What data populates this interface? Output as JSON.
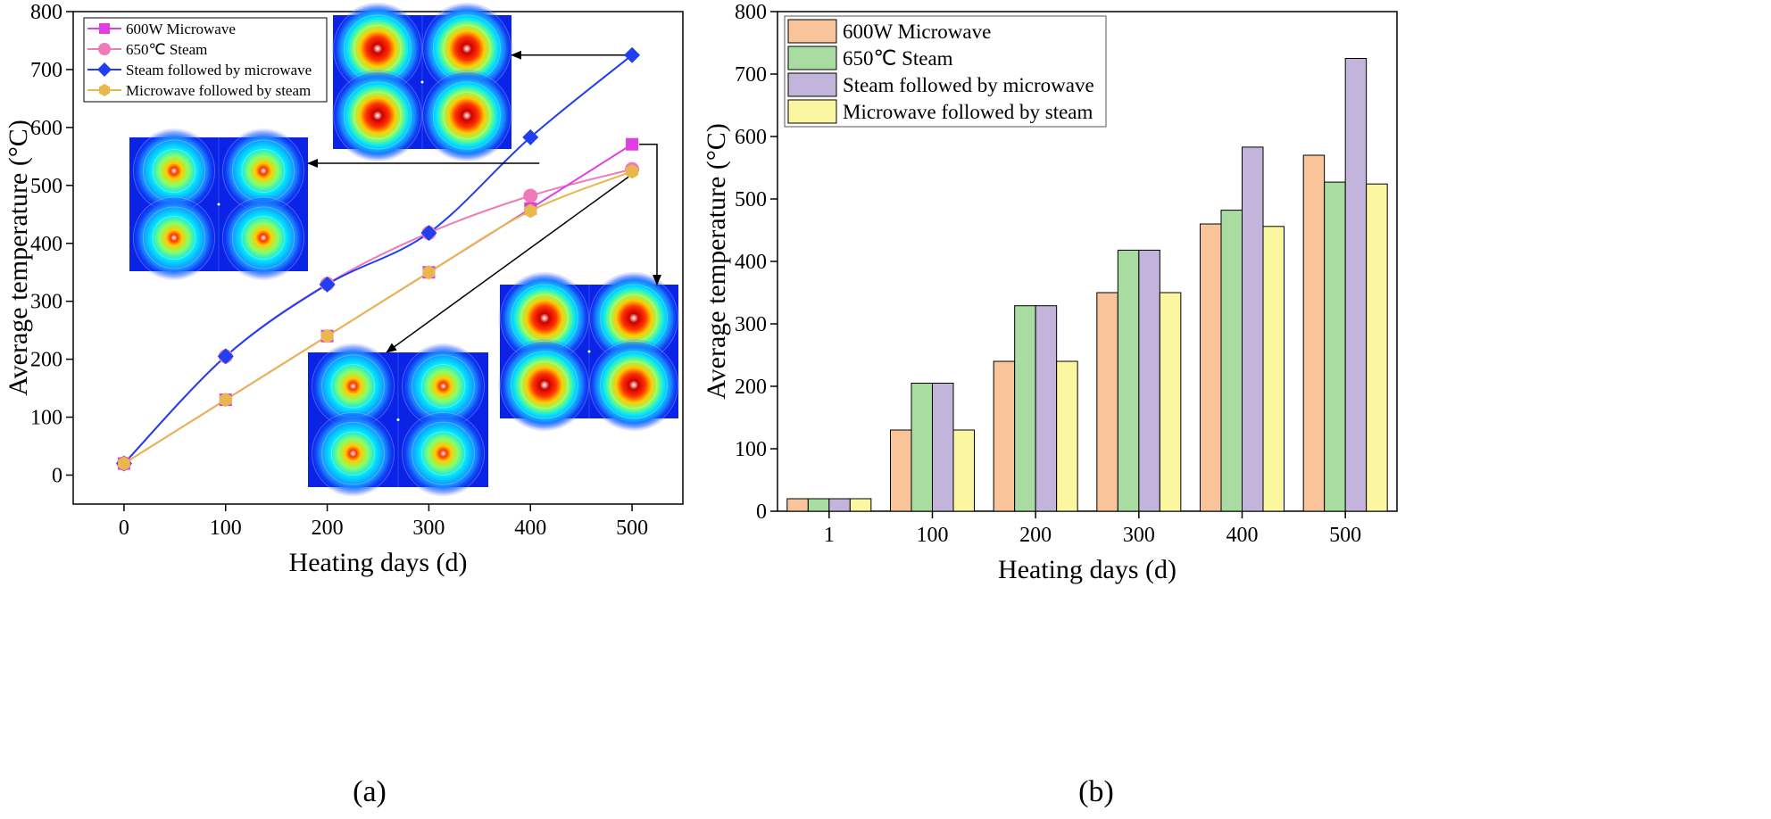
{
  "panels": {
    "a": {
      "caption": "(a)"
    },
    "b": {
      "caption": "(b)"
    }
  },
  "colors": {
    "line_600w_microwave": "#e03ee0",
    "line_650c_steam": "#f07ab8",
    "line_steam_then_microwave": "#1f3ff0",
    "line_microwave_then_steam": "#e8b84c",
    "bar_600w_microwave": "#f9c49a",
    "bar_650c_steam": "#a8dca0",
    "bar_steam_then_microwave": "#c2b4da",
    "bar_microwave_then_steam": "#fbf7a0"
  },
  "chart_data": [
    {
      "type": "line",
      "xlabel": "Heating days (d)",
      "ylabel": "Average temperature (°C)",
      "x": [
        0,
        100,
        200,
        300,
        400,
        500
      ],
      "xlim": [
        -50,
        550
      ],
      "ylim": [
        -50,
        800
      ],
      "xticks": [
        "0",
        "100",
        "200",
        "300",
        "400",
        "500"
      ],
      "yticks": [
        "0",
        "100",
        "200",
        "300",
        "400",
        "500",
        "600",
        "700",
        "800"
      ],
      "legend_position": "top-left",
      "series": [
        {
          "name": "600W Microwave",
          "marker": "square",
          "values": [
            20,
            130,
            240,
            350,
            460,
            571
          ]
        },
        {
          "name": "650℃ Steam",
          "marker": "circle",
          "values": [
            20,
            205,
            330,
            418,
            482,
            528
          ]
        },
        {
          "name": "Steam followed by microwave",
          "marker": "diamond",
          "values": [
            20,
            205,
            329,
            418,
            583,
            725
          ]
        },
        {
          "name": "Microwave followed by steam",
          "marker": "hexagon",
          "values": [
            20,
            130,
            240,
            350,
            456,
            524
          ]
        }
      ],
      "insets": [
        {
          "id": "inset-top",
          "points_to_series": "Steam followed by microwave",
          "points_to_x": 500
        },
        {
          "id": "inset-left",
          "points_to_series": "Steam followed by microwave",
          "points_to_x": 400
        },
        {
          "id": "inset-right",
          "points_to_series": "600W Microwave",
          "points_to_x": 500
        },
        {
          "id": "inset-bottom",
          "points_to_series": "Microwave followed by steam",
          "points_to_x": 500
        }
      ]
    },
    {
      "type": "bar",
      "xlabel": "Heating days (d)",
      "ylabel": "Average temperature (°C)",
      "categories": [
        "1",
        "100",
        "200",
        "300",
        "400",
        "500"
      ],
      "ylim": [
        0,
        800
      ],
      "yticks": [
        "0",
        "100",
        "200",
        "300",
        "400",
        "500",
        "600",
        "700",
        "800"
      ],
      "legend_position": "top-left",
      "series": [
        {
          "name": "600W Microwave",
          "values": [
            20,
            130,
            240,
            350,
            460,
            570
          ]
        },
        {
          "name": "650℃  Steam",
          "values": [
            20,
            205,
            329,
            418,
            482,
            527
          ]
        },
        {
          "name": "Steam followed by microwave",
          "values": [
            20,
            205,
            329,
            418,
            583,
            725
          ]
        },
        {
          "name": "Microwave followed by steam",
          "values": [
            20,
            130,
            240,
            350,
            456,
            524
          ]
        }
      ]
    }
  ]
}
